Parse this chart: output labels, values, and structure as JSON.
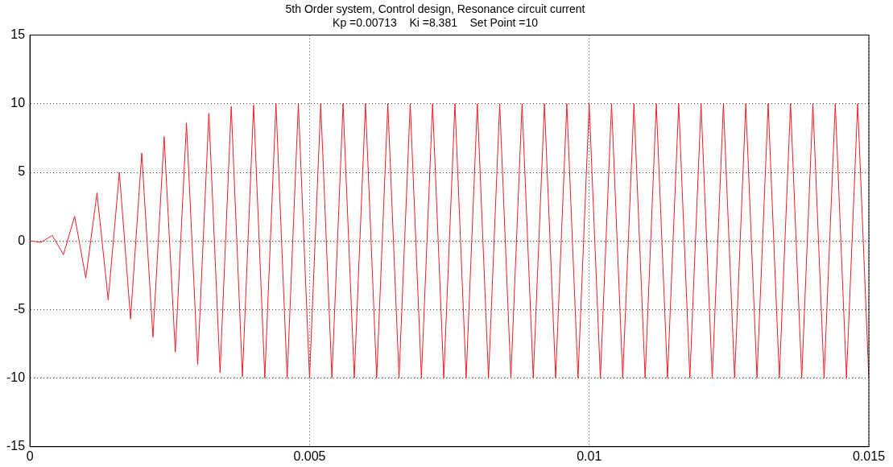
{
  "chart_data": {
    "type": "line",
    "title": "5th Order system, Control design, Resonance circuit current",
    "subtitle": "Kp =0.00713    Ki =8.381    Set Point =10",
    "x": [
      0,
      0.0002,
      0.0004,
      0.0006,
      0.0008,
      0.001,
      0.0012,
      0.0014,
      0.0016,
      0.0018,
      0.002,
      0.0022,
      0.0024,
      0.0026,
      0.0028,
      0.003,
      0.0032,
      0.0034,
      0.0036,
      0.0038,
      0.004,
      0.0042,
      0.0044,
      0.0046,
      0.0048,
      0.005,
      0.0052,
      0.0054,
      0.0056,
      0.0058,
      0.006,
      0.0062,
      0.0064,
      0.0066,
      0.0068,
      0.007,
      0.0072,
      0.0074,
      0.0076,
      0.0078,
      0.008,
      0.0082,
      0.0084,
      0.0086,
      0.0088,
      0.009,
      0.0092,
      0.0094,
      0.0096,
      0.0098,
      0.01,
      0.0102,
      0.0104,
      0.0106,
      0.0108,
      0.011,
      0.0112,
      0.0114,
      0.0116,
      0.0118,
      0.012,
      0.0122,
      0.0124,
      0.0126,
      0.0128,
      0.013,
      0.0132,
      0.0134,
      0.0136,
      0.0138,
      0.014,
      0.0142,
      0.0144,
      0.0146,
      0.0148,
      0.015
    ],
    "series": [
      {
        "color": "#ee1c24",
        "values": [
          0,
          -0.1,
          0.4,
          -1.0,
          1.8,
          -2.7,
          3.5,
          -4.3,
          5.0,
          -5.7,
          6.4,
          -7.0,
          7.6,
          -8.1,
          8.6,
          -9.0,
          9.3,
          -9.6,
          9.8,
          -9.9,
          9.9,
          -10,
          10,
          -10,
          10,
          -10,
          10,
          -10,
          10,
          -10,
          10,
          -10,
          10,
          -10,
          10,
          -10,
          10,
          -10,
          10,
          -10,
          10,
          -10,
          10,
          -10,
          10,
          -10,
          10,
          -10,
          10,
          -10,
          10,
          -10,
          10,
          -10,
          10,
          -10,
          10,
          -10,
          10,
          -10,
          10,
          -10,
          10,
          -10,
          10,
          -10,
          10,
          -10,
          10,
          -10,
          10,
          -10,
          10,
          -10,
          10,
          -10
        ]
      }
    ],
    "xlim": [
      0,
      0.015
    ],
    "xticks": [
      0,
      0.005,
      0.01,
      0.015
    ],
    "ylim": [
      -15,
      15
    ],
    "yticks": [
      -15,
      -10,
      -5,
      0,
      5,
      10,
      15
    ],
    "grid": true,
    "legend": false,
    "marker": "none",
    "line_style": "solid"
  }
}
